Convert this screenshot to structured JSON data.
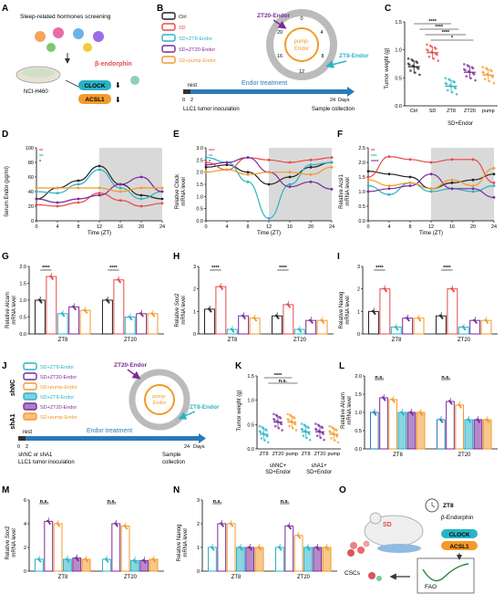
{
  "panels": {
    "A": {
      "letter": "A",
      "title": "Sleep-related hormones screening",
      "cell": "NCI-H460",
      "hormone": "β-endorphin",
      "genes": [
        "CLOCK",
        "ACSL1"
      ]
    },
    "B": {
      "letter": "B",
      "legend": [
        "Ctrl",
        "SD",
        "SD+ZT8-Endor",
        "SD+ZT20-Endor",
        "SD+pump-Endor"
      ],
      "zt20": "ZT20-Endor",
      "zt8": "ZT8-Endor",
      "pump": [
        "pump-",
        "Endor"
      ],
      "clock": [
        "0",
        "4",
        "8",
        "12",
        "16",
        "20"
      ],
      "rest": "rest",
      "treatment": "Endor treatment",
      "t0": "0",
      "t2": "2",
      "t24": "24",
      "days": "Days",
      "inoc": "LLC1 tumor inoculation",
      "collect": "Sample collection"
    },
    "C": {
      "letter": "C",
      "ylabel": "Tumor weight (g)",
      "xt": [
        "Ctrl",
        "SD",
        "ZT8",
        "ZT20",
        "pump"
      ],
      "group": "SD+Endor",
      "yticks": [
        "0.0",
        "0.5",
        "1.0",
        "1.5"
      ],
      "sig": [
        "****",
        "****",
        "****",
        "*"
      ]
    },
    "D": {
      "letter": "D",
      "ylabel": "Serum Endor (pg/ml)",
      "yticks": [
        "0",
        "20",
        "40",
        "60",
        "80",
        "100"
      ],
      "sig": [
        "**",
        "**",
        "*"
      ]
    },
    "E": {
      "letter": "E",
      "ylabel": "Relative Clock",
      "ylabel2": "mRNA level",
      "yticks": [
        "0.0",
        "0.5",
        "1.0",
        "1.5",
        "2.0",
        "2.5",
        "3.0"
      ],
      "sig": [
        "***",
        "**",
        "*"
      ]
    },
    "F": {
      "letter": "F",
      "ylabel": "Relative Acsl1",
      "ylabel2": "mRNA level",
      "yticks": [
        "0.0",
        "0.5",
        "1.0",
        "1.5",
        "2.0",
        "2.5"
      ],
      "sig": [
        "**",
        "***",
        "****"
      ]
    },
    "G": {
      "letter": "G",
      "ylabel": "Relative Alcam",
      "ylabel2": "mRNA level",
      "yticks": [
        "0.0",
        "0.5",
        "1.0",
        "1.5",
        "2.0"
      ]
    },
    "H": {
      "letter": "H",
      "ylabel": "Relative Sox2",
      "ylabel2": "mRNA level",
      "yticks": [
        "0",
        "1",
        "2",
        "3"
      ]
    },
    "I": {
      "letter": "I",
      "ylabel": "Relative Nanog",
      "ylabel2": "mRNA level",
      "yticks": [
        "0",
        "1",
        "2",
        "3"
      ]
    },
    "J": {
      "letter": "J",
      "shnc": "shNC",
      "sha1": "shA1",
      "legend": [
        "SD+ZT8-Endor",
        "SD+ZT20-Endor",
        "SD+pump-Endor",
        "SD+ZT8-Endor",
        "SD+ZT20-Endor",
        "SD+pump-Endor"
      ],
      "zt20": "ZT20-Endor",
      "zt8": "ZT8-Endor",
      "pump": [
        "pump-",
        "Endor"
      ],
      "rest": "rest",
      "treatment": "Endor treatment",
      "t0": "0",
      "t2": "2",
      "t24": "24",
      "days": "Days",
      "inoc1": "shNC or shA1",
      "inoc2": "LLC1 tumor inoculation",
      "collect1": "Sample",
      "collect2": "collection"
    },
    "K": {
      "letter": "K",
      "ylabel": "Tumor weight (g)",
      "yticks": [
        "0.0",
        "0.5",
        "1.0",
        "1.5"
      ],
      "xt": [
        "ZT8",
        "ZT20",
        "pump",
        "ZT8",
        "ZT20",
        "pump"
      ],
      "group1": "shNC+",
      "group1b": "SD+Endor",
      "group2": "shA1+",
      "group2b": "SD+Endor",
      "sig": [
        "****",
        "n.s."
      ]
    },
    "L": {
      "letter": "L",
      "ylabel": "Relative Alcam",
      "ylabel2": "mRNA level",
      "yticks": [
        "0.0",
        "0.5",
        "1.0",
        "1.5",
        "2.0"
      ]
    },
    "M": {
      "letter": "M",
      "ylabel": "Relative Sox2",
      "ylabel2": "mRNA level",
      "yticks": [
        "0",
        "2",
        "4",
        "6"
      ]
    },
    "N": {
      "letter": "N",
      "ylabel": "Relative Nanog",
      "ylabel2": "mRNA level",
      "yticks": [
        "0",
        "1",
        "2",
        "3"
      ]
    },
    "O": {
      "letter": "O",
      "sd": "SD",
      "zt8": "ZT8",
      "endor": "β-Endorphin",
      "genes": [
        "CLOCK",
        "ACSL1"
      ],
      "cscs": "CSCs",
      "fao": "FAO"
    }
  },
  "colors": {
    "ctrl": "#222222",
    "sd": "#e8484a",
    "zt8": "#2ab3c6",
    "zt20": "#7a2a9a",
    "pump": "#f39a2a",
    "shade": "#d9d9d9"
  },
  "chart_data": [
    {
      "panel": "C",
      "type": "scatter-bar",
      "categories": [
        "Ctrl",
        "SD",
        "ZT8",
        "ZT20",
        "pump"
      ],
      "values": [
        0.7,
        0.95,
        0.35,
        0.6,
        0.55
      ],
      "ylim": [
        0,
        1.5
      ]
    },
    {
      "panel": "D",
      "type": "line",
      "x": [
        0,
        4,
        8,
        12,
        16,
        20,
        24
      ],
      "xlabel": "Time (ZT)",
      "ylim": [
        0,
        100
      ],
      "series": [
        {
          "name": "Ctrl",
          "values": [
            30,
            45,
            55,
            75,
            50,
            35,
            30
          ]
        },
        {
          "name": "SD",
          "values": [
            22,
            20,
            25,
            38,
            28,
            20,
            24
          ]
        },
        {
          "name": "SD+ZT8-Endor",
          "values": [
            40,
            38,
            50,
            70,
            45,
            30,
            40
          ]
        },
        {
          "name": "SD+ZT20-Endor",
          "values": [
            30,
            25,
            30,
            35,
            50,
            60,
            40
          ]
        },
        {
          "name": "SD+pump-Endor",
          "values": [
            45,
            45,
            45,
            45,
            40,
            45,
            45
          ]
        }
      ]
    },
    {
      "panel": "E",
      "type": "line",
      "x": [
        0,
        4,
        8,
        12,
        16,
        20,
        24
      ],
      "xlabel": "Time (ZT)",
      "ylim": [
        0,
        3
      ],
      "series": [
        {
          "name": "Ctrl",
          "values": [
            2.2,
            2.3,
            2.0,
            1.5,
            1.8,
            2.2,
            2.4
          ]
        },
        {
          "name": "SD",
          "values": [
            2.4,
            2.1,
            2.6,
            2.5,
            2.4,
            2.5,
            2.6
          ]
        },
        {
          "name": "SD+ZT8-Endor",
          "values": [
            2.6,
            2.4,
            1.6,
            0.1,
            1.5,
            2.3,
            2.4
          ]
        },
        {
          "name": "SD+ZT20-Endor",
          "values": [
            2.3,
            2.4,
            2.6,
            2.0,
            1.4,
            1.6,
            1.3
          ]
        },
        {
          "name": "SD+pump-Endor",
          "values": [
            2.0,
            2.1,
            1.9,
            2.0,
            2.0,
            1.9,
            2.2
          ]
        }
      ]
    },
    {
      "panel": "F",
      "type": "line",
      "x": [
        0,
        4,
        8,
        12,
        16,
        20,
        24
      ],
      "xlabel": "Time (ZT)",
      "ylim": [
        0,
        2.5
      ],
      "series": [
        {
          "name": "Ctrl",
          "values": [
            1.7,
            1.6,
            1.5,
            1.1,
            1.3,
            1.4,
            1.6
          ]
        },
        {
          "name": "SD",
          "values": [
            1.5,
            2.2,
            2.1,
            2.0,
            2.1,
            2.1,
            1.3
          ]
        },
        {
          "name": "SD+ZT8-Endor",
          "values": [
            1.2,
            0.9,
            1.3,
            1.0,
            1.1,
            1.0,
            1.2
          ]
        },
        {
          "name": "SD+ZT20-Endor",
          "values": [
            1.0,
            1.1,
            1.2,
            1.6,
            1.1,
            1.1,
            0.8
          ]
        },
        {
          "name": "SD+pump-Endor",
          "values": [
            1.4,
            1.2,
            1.3,
            1.1,
            1.4,
            1.2,
            1.8
          ]
        }
      ]
    },
    {
      "panel": "G",
      "type": "bar",
      "groups": [
        "ZT8",
        "ZT20"
      ],
      "ylim": [
        0,
        2
      ],
      "series": [
        {
          "name": "Ctrl",
          "values": [
            1.0,
            1.0
          ]
        },
        {
          "name": "SD",
          "values": [
            1.7,
            1.6
          ]
        },
        {
          "name": "SD+ZT8-Endor",
          "values": [
            0.6,
            0.5
          ]
        },
        {
          "name": "SD+ZT20-Endor",
          "values": [
            0.8,
            0.6
          ]
        },
        {
          "name": "SD+pump-Endor",
          "values": [
            0.7,
            0.6
          ]
        }
      ]
    },
    {
      "panel": "H",
      "type": "bar",
      "groups": [
        "ZT8",
        "ZT20"
      ],
      "ylim": [
        0,
        3
      ],
      "series": [
        {
          "name": "Ctrl",
          "values": [
            1.1,
            0.8
          ]
        },
        {
          "name": "SD",
          "values": [
            2.1,
            1.3
          ]
        },
        {
          "name": "SD+ZT8-Endor",
          "values": [
            0.2,
            0.2
          ]
        },
        {
          "name": "SD+ZT20-Endor",
          "values": [
            0.8,
            0.6
          ]
        },
        {
          "name": "SD+pump-Endor",
          "values": [
            0.7,
            0.6
          ]
        }
      ]
    },
    {
      "panel": "I",
      "type": "bar",
      "groups": [
        "ZT8",
        "ZT20"
      ],
      "ylim": [
        0,
        3
      ],
      "series": [
        {
          "name": "Ctrl",
          "values": [
            1.0,
            0.8
          ]
        },
        {
          "name": "SD",
          "values": [
            2.0,
            2.0
          ]
        },
        {
          "name": "SD+ZT8-Endor",
          "values": [
            0.3,
            0.3
          ]
        },
        {
          "name": "SD+ZT20-Endor",
          "values": [
            0.7,
            0.6
          ]
        },
        {
          "name": "SD+pump-Endor",
          "values": [
            0.7,
            0.6
          ]
        }
      ]
    },
    {
      "panel": "K",
      "type": "scatter-bar",
      "categories": [
        "ZT8",
        "ZT20",
        "pump",
        "ZT8",
        "ZT20",
        "pump"
      ],
      "values": [
        0.3,
        0.55,
        0.55,
        0.35,
        0.35,
        0.3
      ],
      "ylim": [
        0,
        1.5
      ]
    },
    {
      "panel": "L",
      "type": "bar",
      "groups": [
        "ZT8",
        "ZT20"
      ],
      "ylim": [
        0,
        2
      ],
      "series": [
        {
          "name": "shNC",
          "values": [
            1.0,
            0.8
          ]
        },
        {
          "name": "SD+ZT20-Endor",
          "values": [
            1.4,
            1.3
          ]
        },
        {
          "name": "SD+pump-Endor",
          "values": [
            1.35,
            1.2
          ]
        },
        {
          "name": "shA1 ZT8",
          "values": [
            1.0,
            0.8
          ]
        },
        {
          "name": "shA1 ZT20",
          "values": [
            1.0,
            0.8
          ]
        },
        {
          "name": "shA1 pump",
          "values": [
            1.0,
            0.8
          ]
        }
      ]
    },
    {
      "panel": "M",
      "type": "bar",
      "groups": [
        "ZT8",
        "ZT20"
      ],
      "ylim": [
        0,
        6
      ],
      "series": [
        {
          "name": "shNC",
          "values": [
            1.0,
            1.0
          ]
        },
        {
          "name": "SD+ZT20-Endor",
          "values": [
            4.2,
            4.0
          ]
        },
        {
          "name": "SD+pump-Endor",
          "values": [
            4.0,
            3.8
          ]
        },
        {
          "name": "shA1 ZT8",
          "values": [
            1.0,
            0.9
          ]
        },
        {
          "name": "shA1 ZT20",
          "values": [
            1.1,
            0.9
          ]
        },
        {
          "name": "shA1 pump",
          "values": [
            1.0,
            1.0
          ]
        }
      ]
    },
    {
      "panel": "N",
      "type": "bar",
      "groups": [
        "ZT8",
        "ZT20"
      ],
      "ylim": [
        0,
        3
      ],
      "series": [
        {
          "name": "shNC",
          "values": [
            1.0,
            1.0
          ]
        },
        {
          "name": "SD+ZT20-Endor",
          "values": [
            2.0,
            1.9
          ]
        },
        {
          "name": "SD+pump-Endor",
          "values": [
            2.0,
            1.5
          ]
        },
        {
          "name": "shA1 ZT8",
          "values": [
            1.0,
            1.0
          ]
        },
        {
          "name": "shA1 ZT20",
          "values": [
            1.0,
            1.0
          ]
        },
        {
          "name": "shA1 pump",
          "values": [
            1.0,
            1.0
          ]
        }
      ]
    }
  ]
}
